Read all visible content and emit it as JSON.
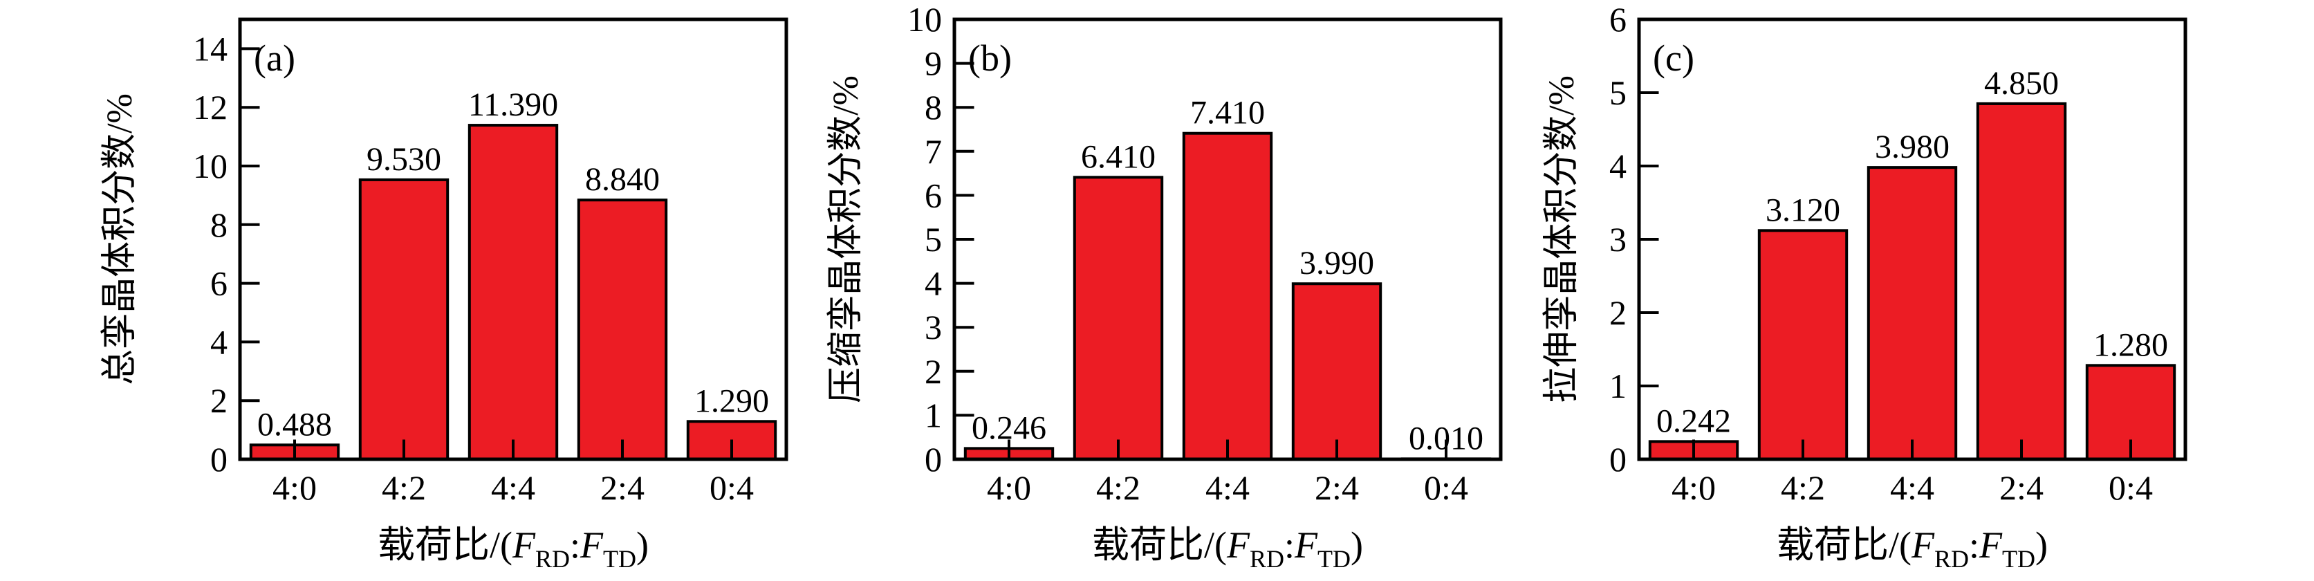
{
  "figure": {
    "background": "#ffffff",
    "bar_fill": "#EC1C24",
    "bar_stroke": "#000000",
    "axis_color": "#000000",
    "grid": false,
    "legend": null,
    "categories": [
      "4:0",
      "4:2",
      "4:4",
      "2:4",
      "0:4"
    ],
    "xlabel": {
      "text": "载荷比/(F_RD:F_TD)",
      "prefix": "载荷比/(",
      "f1": "F",
      "sub1": "RD",
      "colon": ":",
      "f2": "F",
      "sub2": "TD",
      "suffix": ")"
    }
  },
  "chart_data": [
    {
      "type": "bar",
      "panel_label": "(a)",
      "ylabel": "总孪晶体积分数/%",
      "xlabel": "载荷比/(F_RD:F_TD)",
      "categories": [
        "4:0",
        "4:2",
        "4:4",
        "2:4",
        "0:4"
      ],
      "values": [
        0.488,
        9.53,
        11.39,
        8.84,
        1.29
      ],
      "value_labels": [
        "0.488",
        "9.530",
        "11.390",
        "8.840",
        "1.290"
      ],
      "ylim": [
        0,
        15
      ],
      "yticks": [
        0,
        2,
        4,
        6,
        8,
        10,
        12,
        14
      ]
    },
    {
      "type": "bar",
      "panel_label": "(b)",
      "ylabel": "压缩孪晶体积分数/%",
      "xlabel": "载荷比/(F_RD:F_TD)",
      "categories": [
        "4:0",
        "4:2",
        "4:4",
        "2:4",
        "0:4"
      ],
      "values": [
        0.246,
        6.41,
        7.41,
        3.99,
        0.01
      ],
      "value_labels": [
        "0.246",
        "6.410",
        "7.410",
        "3.990",
        "0.010"
      ],
      "ylim": [
        0,
        10
      ],
      "yticks": [
        0,
        1,
        2,
        3,
        4,
        5,
        6,
        7,
        8,
        9,
        10
      ]
    },
    {
      "type": "bar",
      "panel_label": "(c)",
      "ylabel": "拉伸孪晶体积分数/%",
      "xlabel": "载荷比/(F_RD:F_TD)",
      "categories": [
        "4:0",
        "4:2",
        "4:4",
        "2:4",
        "0:4"
      ],
      "values": [
        0.242,
        3.12,
        3.98,
        4.85,
        1.28
      ],
      "value_labels": [
        "0.242",
        "3.120",
        "3.980",
        "4.850",
        "1.280"
      ],
      "ylim": [
        0,
        6
      ],
      "yticks": [
        0,
        1,
        2,
        3,
        4,
        5,
        6
      ]
    }
  ]
}
